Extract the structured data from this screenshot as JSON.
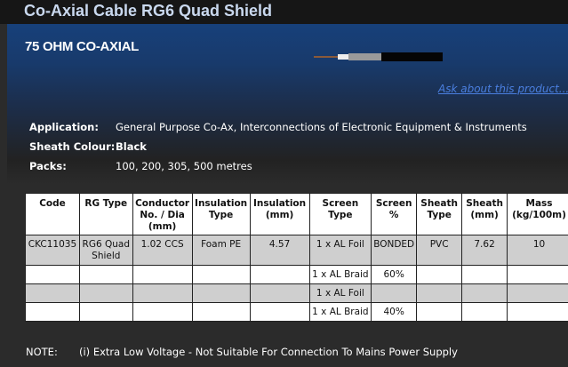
{
  "header": {
    "title": "Co-Axial Cable RG6 Quad Shield"
  },
  "panel": {
    "subtitle": "75 OHM CO-AXIAL",
    "ask_link": "Ask about this product..."
  },
  "info": [
    {
      "label": "Application:",
      "value": "General Purpose Co-Ax, Interconnections of Electronic Equipment & Instruments"
    },
    {
      "label": "Sheath Colour:",
      "value": "Black"
    },
    {
      "label": "Packs:",
      "value": "100, 200, 305, 500 metres"
    }
  ],
  "table": {
    "headers": [
      "Code",
      "RG Type",
      "Conductor No. / Dia (mm)",
      "Insulation Type",
      "Insulation (mm)",
      "Screen Type",
      "Screen %",
      "Sheath Type",
      "Sheath (mm)",
      "Mass (kg/100m)"
    ],
    "rows": [
      [
        "CKC11035",
        "RG6 Quad Shield",
        "1.02 CCS",
        "Foam PE",
        "4.57",
        "1 x AL Foil",
        "BONDED",
        "PVC",
        "7.62",
        "10"
      ],
      [
        "",
        "",
        "",
        "",
        "",
        "1 x AL Braid",
        "60%",
        "",
        "",
        ""
      ],
      [
        "",
        "",
        "",
        "",
        "",
        "1 x AL Foil",
        "",
        "",
        "",
        ""
      ],
      [
        "",
        "",
        "",
        "",
        "",
        "1 x AL Braid",
        "40%",
        "",
        "",
        ""
      ]
    ]
  },
  "note": {
    "label": "NOTE:",
    "text": "(i) Extra Low Voltage - Not Suitable For Connection To Mains Power Supply"
  }
}
